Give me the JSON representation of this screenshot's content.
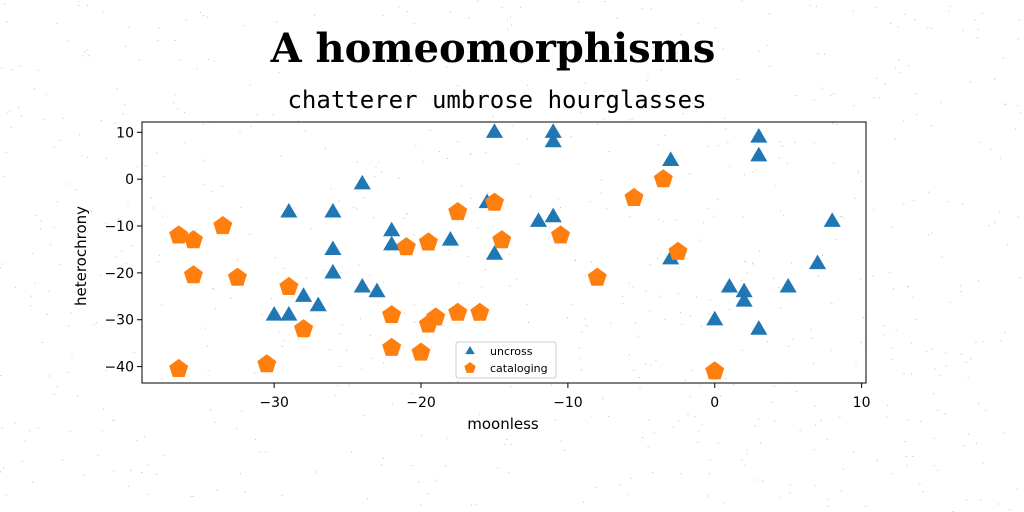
{
  "chart_data": {
    "type": "scatter",
    "title": "A homeomorphisms",
    "subtitle": "chatterer umbrose hourglasses",
    "xlabel": "moonless",
    "ylabel": "heterochrony",
    "xlim": [
      -39,
      10.3
    ],
    "ylim": [
      -43.5,
      12.2
    ],
    "xticks": [
      -30,
      -20,
      -10,
      0,
      10
    ],
    "yticks": [
      10,
      0,
      -10,
      -20,
      -30,
      -40
    ],
    "grid": false,
    "legend_position": "bottom-center",
    "series": [
      {
        "name": "uncross",
        "marker": "triangle",
        "color": "#1f77b4",
        "points": [
          [
            -15,
            10
          ],
          [
            -11,
            10
          ],
          [
            -11,
            8
          ],
          [
            3,
            9
          ],
          [
            3,
            5
          ],
          [
            -3,
            4
          ],
          [
            -24,
            -1
          ],
          [
            -29,
            -7
          ],
          [
            -26,
            -7
          ],
          [
            -15.5,
            -5
          ],
          [
            -12,
            -9
          ],
          [
            -11,
            -8
          ],
          [
            8,
            -9
          ],
          [
            -22,
            -11
          ],
          [
            -22,
            -14
          ],
          [
            -26,
            -15
          ],
          [
            -18,
            -13
          ],
          [
            -15,
            -16
          ],
          [
            -3,
            -17
          ],
          [
            -26,
            -20
          ],
          [
            7,
            -18
          ],
          [
            -24,
            -23
          ],
          [
            -23,
            -24
          ],
          [
            -28,
            -25
          ],
          [
            -27,
            -27
          ],
          [
            -30,
            -29
          ],
          [
            -29,
            -29
          ],
          [
            1,
            -23
          ],
          [
            2,
            -24
          ],
          [
            2,
            -26
          ],
          [
            5,
            -23
          ],
          [
            0,
            -30
          ],
          [
            3,
            -32
          ]
        ]
      },
      {
        "name": "cataloging",
        "marker": "pentagon",
        "color": "#ff7f0e",
        "points": [
          [
            -33.5,
            -10
          ],
          [
            -36.5,
            -12
          ],
          [
            -35.5,
            -13
          ],
          [
            -35.5,
            -20.5
          ],
          [
            -32.5,
            -21
          ],
          [
            -29,
            -23
          ],
          [
            -28,
            -32
          ],
          [
            -30.5,
            -39.5
          ],
          [
            -36.5,
            -40.5
          ],
          [
            -22,
            -36
          ],
          [
            -20,
            -37
          ],
          [
            -22,
            -29
          ],
          [
            -19.5,
            -31
          ],
          [
            -19,
            -29.5
          ],
          [
            -17.5,
            -28.5
          ],
          [
            -16,
            -28.5
          ],
          [
            -21,
            -14.5
          ],
          [
            -19.5,
            -13.5
          ],
          [
            -17.5,
            -7
          ],
          [
            -15,
            -5
          ],
          [
            -14.5,
            -13
          ],
          [
            -10.5,
            -12
          ],
          [
            -8,
            -21
          ],
          [
            -5.5,
            -4
          ],
          [
            -3.5,
            0
          ],
          [
            -2.5,
            -15.5
          ],
          [
            0,
            -41
          ]
        ]
      }
    ]
  }
}
